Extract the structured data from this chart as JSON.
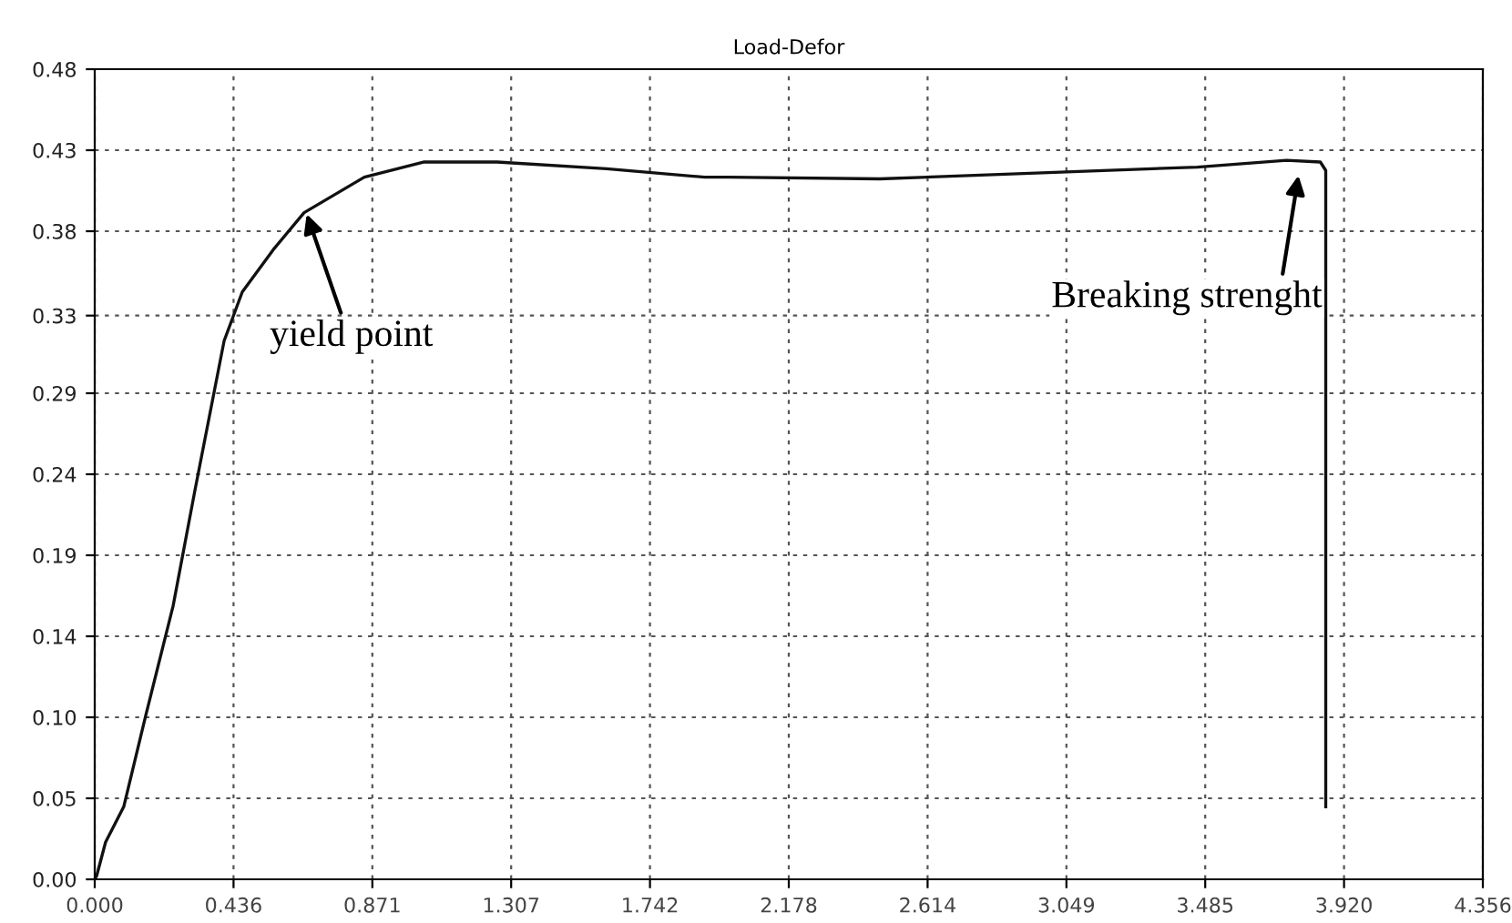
{
  "chart_data": {
    "type": "line",
    "title": "Load-Defor",
    "xlim": [
      0,
      4.356
    ],
    "ylim": [
      0,
      0.48
    ],
    "xticks": [
      {
        "value": 0,
        "label": "0.000"
      },
      {
        "value": 0.4356,
        "label": "0.436"
      },
      {
        "value": 0.8712,
        "label": "0.871"
      },
      {
        "value": 1.3068,
        "label": "1.307"
      },
      {
        "value": 1.7424,
        "label": "1.742"
      },
      {
        "value": 2.178,
        "label": "2.178"
      },
      {
        "value": 2.6136,
        "label": "2.614"
      },
      {
        "value": 3.0492,
        "label": "3.049"
      },
      {
        "value": 3.4848,
        "label": "3.485"
      },
      {
        "value": 3.9204,
        "label": "3.920"
      },
      {
        "value": 4.356,
        "label": "4.356"
      }
    ],
    "yticks": [
      {
        "value": 0,
        "label": "0.00"
      },
      {
        "value": 0.048,
        "label": "0.05"
      },
      {
        "value": 0.096,
        "label": "0.10"
      },
      {
        "value": 0.144,
        "label": "0.14"
      },
      {
        "value": 0.192,
        "label": "0.19"
      },
      {
        "value": 0.24,
        "label": "0.24"
      },
      {
        "value": 0.288,
        "label": "0.29"
      },
      {
        "value": 0.334,
        "label": "0.33"
      },
      {
        "value": 0.384,
        "label": "0.38"
      },
      {
        "value": 0.432,
        "label": "0.43"
      },
      {
        "value": 0.48,
        "label": "0.48"
      }
    ],
    "grid": true,
    "line_style": "solid",
    "series": [
      {
        "color": "#111111",
        "x": [
          0,
          0.006,
          0.034,
          0.091,
          0.16,
          0.246,
          0.314,
          0.406,
          0.463,
          0.56,
          0.657,
          0.846,
          1.034,
          1.263,
          1.606,
          1.914,
          1.989,
          2.463,
          3.03,
          3.46,
          3.74,
          3.846,
          3.863,
          3.863
        ],
        "values": [
          0,
          0.002,
          0.022,
          0.043,
          0.097,
          0.162,
          0.23,
          0.319,
          0.348,
          0.373,
          0.395,
          0.416,
          0.425,
          0.425,
          0.421,
          0.416,
          0.416,
          0.415,
          0.419,
          0.422,
          0.426,
          0.425,
          0.42,
          0.043
        ]
      }
    ],
    "annotations": [
      {
        "text": "yield point",
        "x": 0.66,
        "y": 0.397
      },
      {
        "text": "Breaking strenght",
        "x": 3.78,
        "y": 0.42
      }
    ]
  }
}
